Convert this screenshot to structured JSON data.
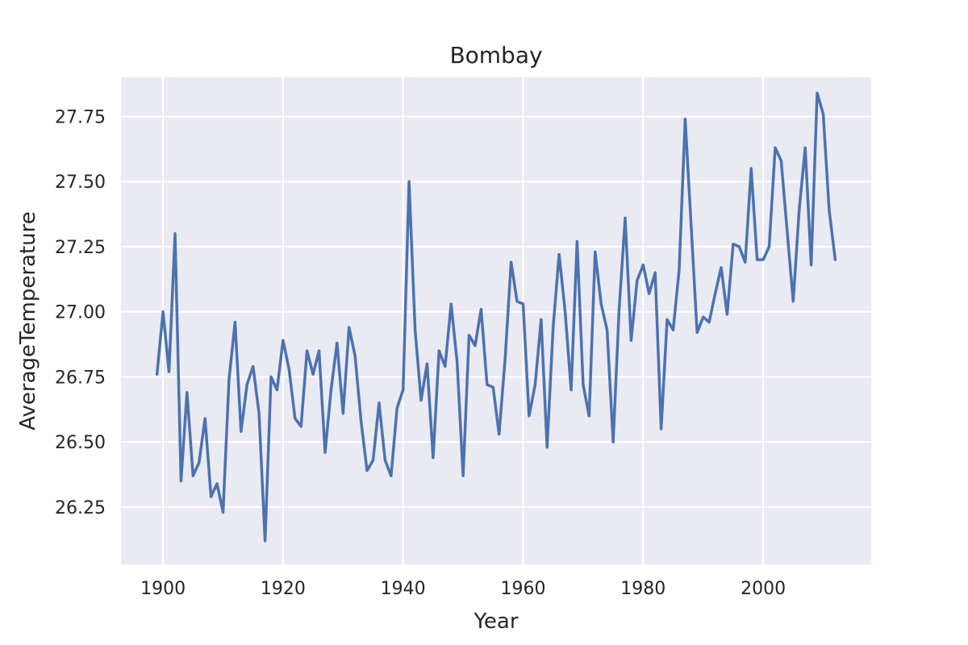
{
  "chart_data": {
    "type": "line",
    "title": "Bombay",
    "xlabel": "Year",
    "ylabel": "AverageTemperature",
    "xlim": [
      1893,
      2018
    ],
    "ylim": [
      26.03,
      27.9
    ],
    "xticks": [
      1900,
      1920,
      1940,
      1960,
      1980,
      2000
    ],
    "yticks": [
      26.25,
      26.5,
      26.75,
      27.0,
      27.25,
      27.5,
      27.75
    ],
    "ytick_labels": [
      "26.25",
      "26.50",
      "26.75",
      "27.00",
      "27.25",
      "27.50",
      "27.75"
    ],
    "grid": true,
    "colors": {
      "line": "#4c72b0",
      "plot_bg": "#eaeaf2",
      "grid": "#ffffff",
      "text": "#262626"
    },
    "series": [
      {
        "x": [
          1899,
          1900,
          1901,
          1902,
          1903,
          1904,
          1905,
          1906,
          1907,
          1908,
          1909,
          1910,
          1911,
          1912,
          1913,
          1914,
          1915,
          1916,
          1917,
          1918,
          1919,
          1920,
          1921,
          1922,
          1923,
          1924,
          1925,
          1926,
          1927,
          1928,
          1929,
          1930,
          1931,
          1932,
          1933,
          1934,
          1935,
          1936,
          1937,
          1938,
          1939,
          1940,
          1941,
          1942,
          1943,
          1944,
          1945,
          1946,
          1947,
          1948,
          1949,
          1950,
          1951,
          1952,
          1953,
          1954,
          1955,
          1956,
          1957,
          1958,
          1959,
          1960,
          1961,
          1962,
          1963,
          1964,
          1965,
          1966,
          1967,
          1968,
          1969,
          1970,
          1971,
          1972,
          1973,
          1974,
          1975,
          1976,
          1977,
          1978,
          1979,
          1980,
          1981,
          1982,
          1983,
          1984,
          1985,
          1986,
          1987,
          1988,
          1989,
          1990,
          1991,
          1992,
          1993,
          1994,
          1995,
          1996,
          1997,
          1998,
          1999,
          2000,
          2001,
          2002,
          2003,
          2004,
          2005,
          2006,
          2007,
          2008,
          2009,
          2010,
          2011,
          2012
        ],
        "values": [
          26.76,
          27.0,
          26.77,
          27.3,
          26.35,
          26.69,
          26.37,
          26.42,
          26.59,
          26.29,
          26.34,
          26.23,
          26.74,
          26.96,
          26.54,
          26.72,
          26.79,
          26.61,
          26.12,
          26.75,
          26.7,
          26.89,
          26.78,
          26.59,
          26.56,
          26.85,
          26.76,
          26.85,
          26.46,
          26.7,
          26.88,
          26.61,
          26.94,
          26.83,
          26.58,
          26.39,
          26.43,
          26.65,
          26.43,
          26.37,
          26.63,
          26.7,
          27.5,
          26.93,
          26.66,
          26.8,
          26.44,
          26.85,
          26.79,
          27.03,
          26.81,
          26.37,
          26.91,
          26.87,
          27.01,
          26.72,
          26.71,
          26.53,
          26.82,
          27.19,
          27.04,
          27.03,
          26.6,
          26.72,
          26.97,
          26.48,
          26.94,
          27.22,
          27.0,
          26.7,
          27.27,
          26.72,
          26.6,
          27.23,
          27.03,
          26.93,
          26.5,
          27.01,
          27.36,
          26.89,
          27.12,
          27.18,
          27.07,
          27.15,
          26.55,
          26.97,
          26.93,
          27.16,
          27.74,
          27.33,
          26.92,
          26.98,
          26.96,
          27.07,
          27.17,
          26.99,
          27.26,
          27.25,
          27.19,
          27.55,
          27.2,
          27.2,
          27.25,
          27.63,
          27.58,
          27.31,
          27.04,
          27.39,
          27.63,
          27.18,
          27.84,
          27.76,
          27.39,
          27.2
        ]
      }
    ]
  }
}
